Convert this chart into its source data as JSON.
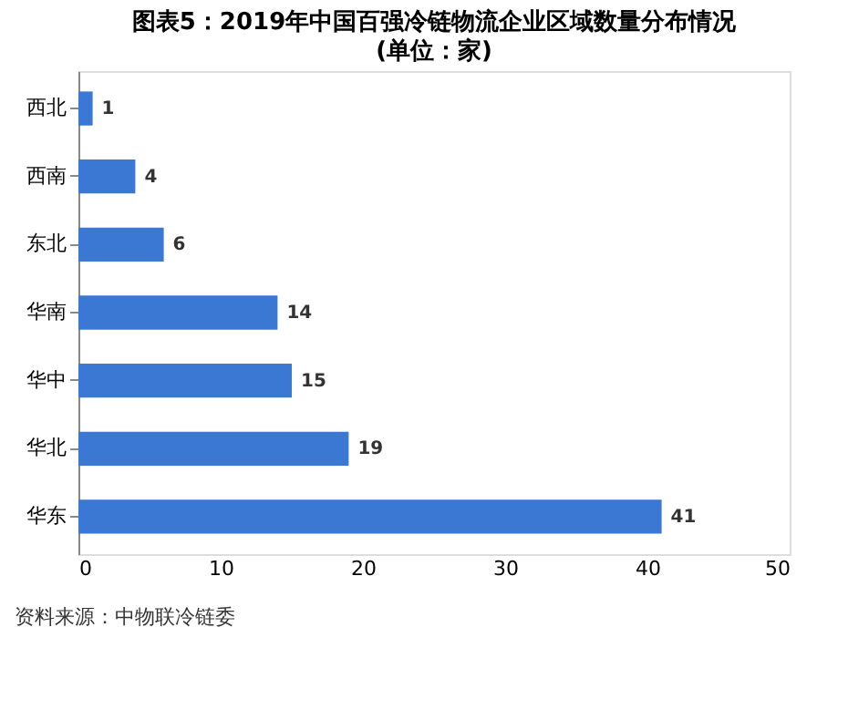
{
  "chart_data": {
    "type": "bar",
    "orientation": "horizontal",
    "title": "图表5：2019年中国百强冷链物流企业区域数量分布情况",
    "subtitle": "(单位：家)",
    "categories": [
      "西北",
      "西南",
      "东北",
      "华南",
      "华中",
      "华北",
      "华东"
    ],
    "values": [
      1,
      4,
      6,
      14,
      15,
      19,
      41
    ],
    "color": "#3a78d4",
    "xlim": [
      0,
      50
    ],
    "xticks": [
      0,
      10,
      20,
      30,
      40,
      50
    ],
    "grid": false,
    "data_labels": true,
    "annotations": [
      "资料来源：中物联冷链委"
    ]
  }
}
